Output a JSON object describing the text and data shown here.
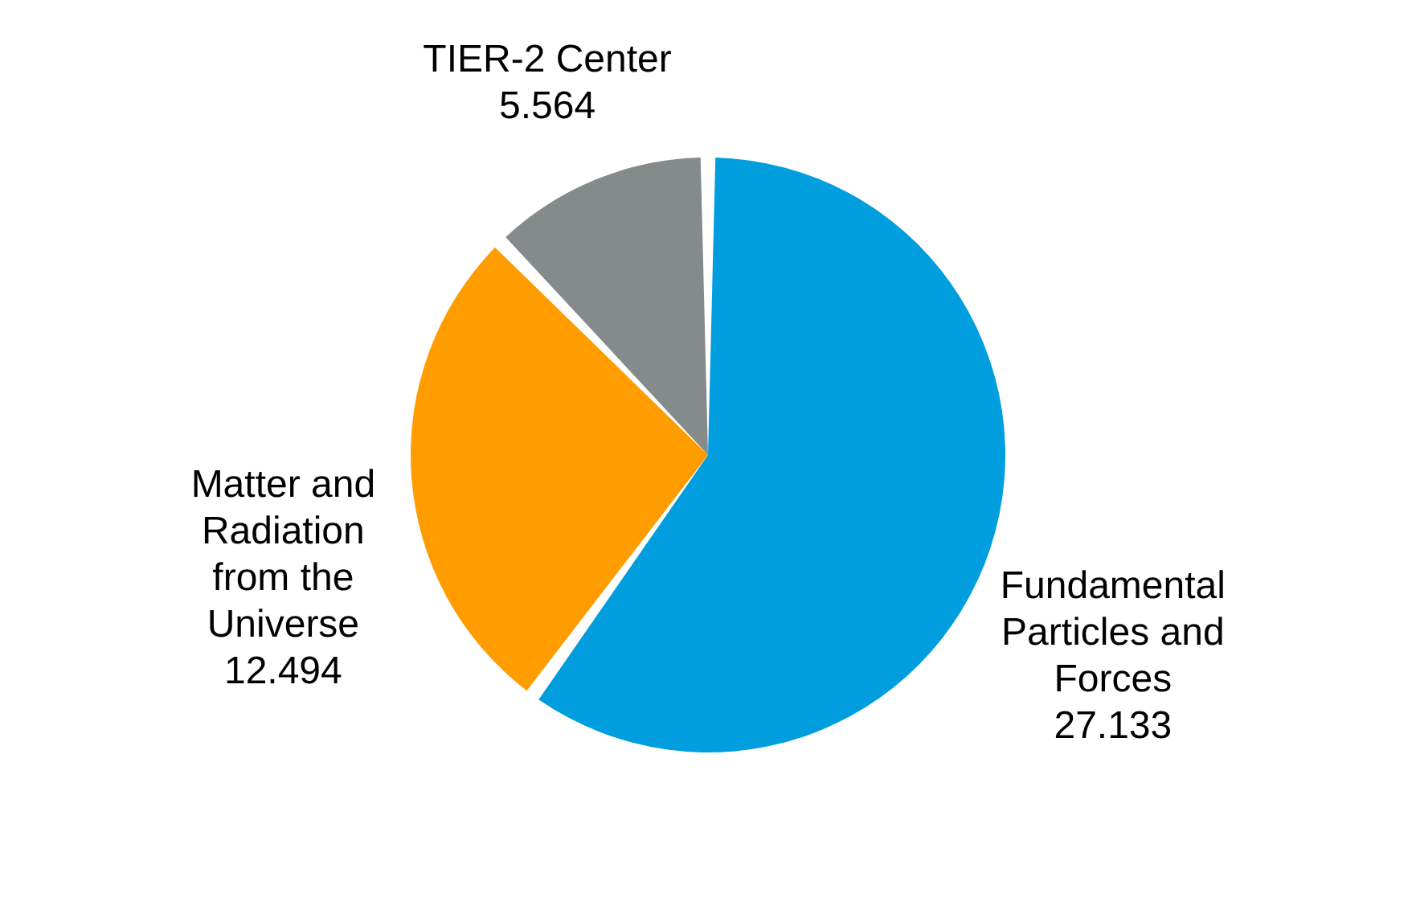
{
  "chart_data": {
    "type": "pie",
    "categories": [
      "Fundamental Particles and Forces",
      "Matter and Radiation from the Universe",
      "TIER-2 Center"
    ],
    "values": [
      27.133,
      12.494,
      5.564
    ],
    "colors": [
      "#009ede",
      "#ff9c00",
      "#858a8a"
    ],
    "data_labels": true
  }
}
